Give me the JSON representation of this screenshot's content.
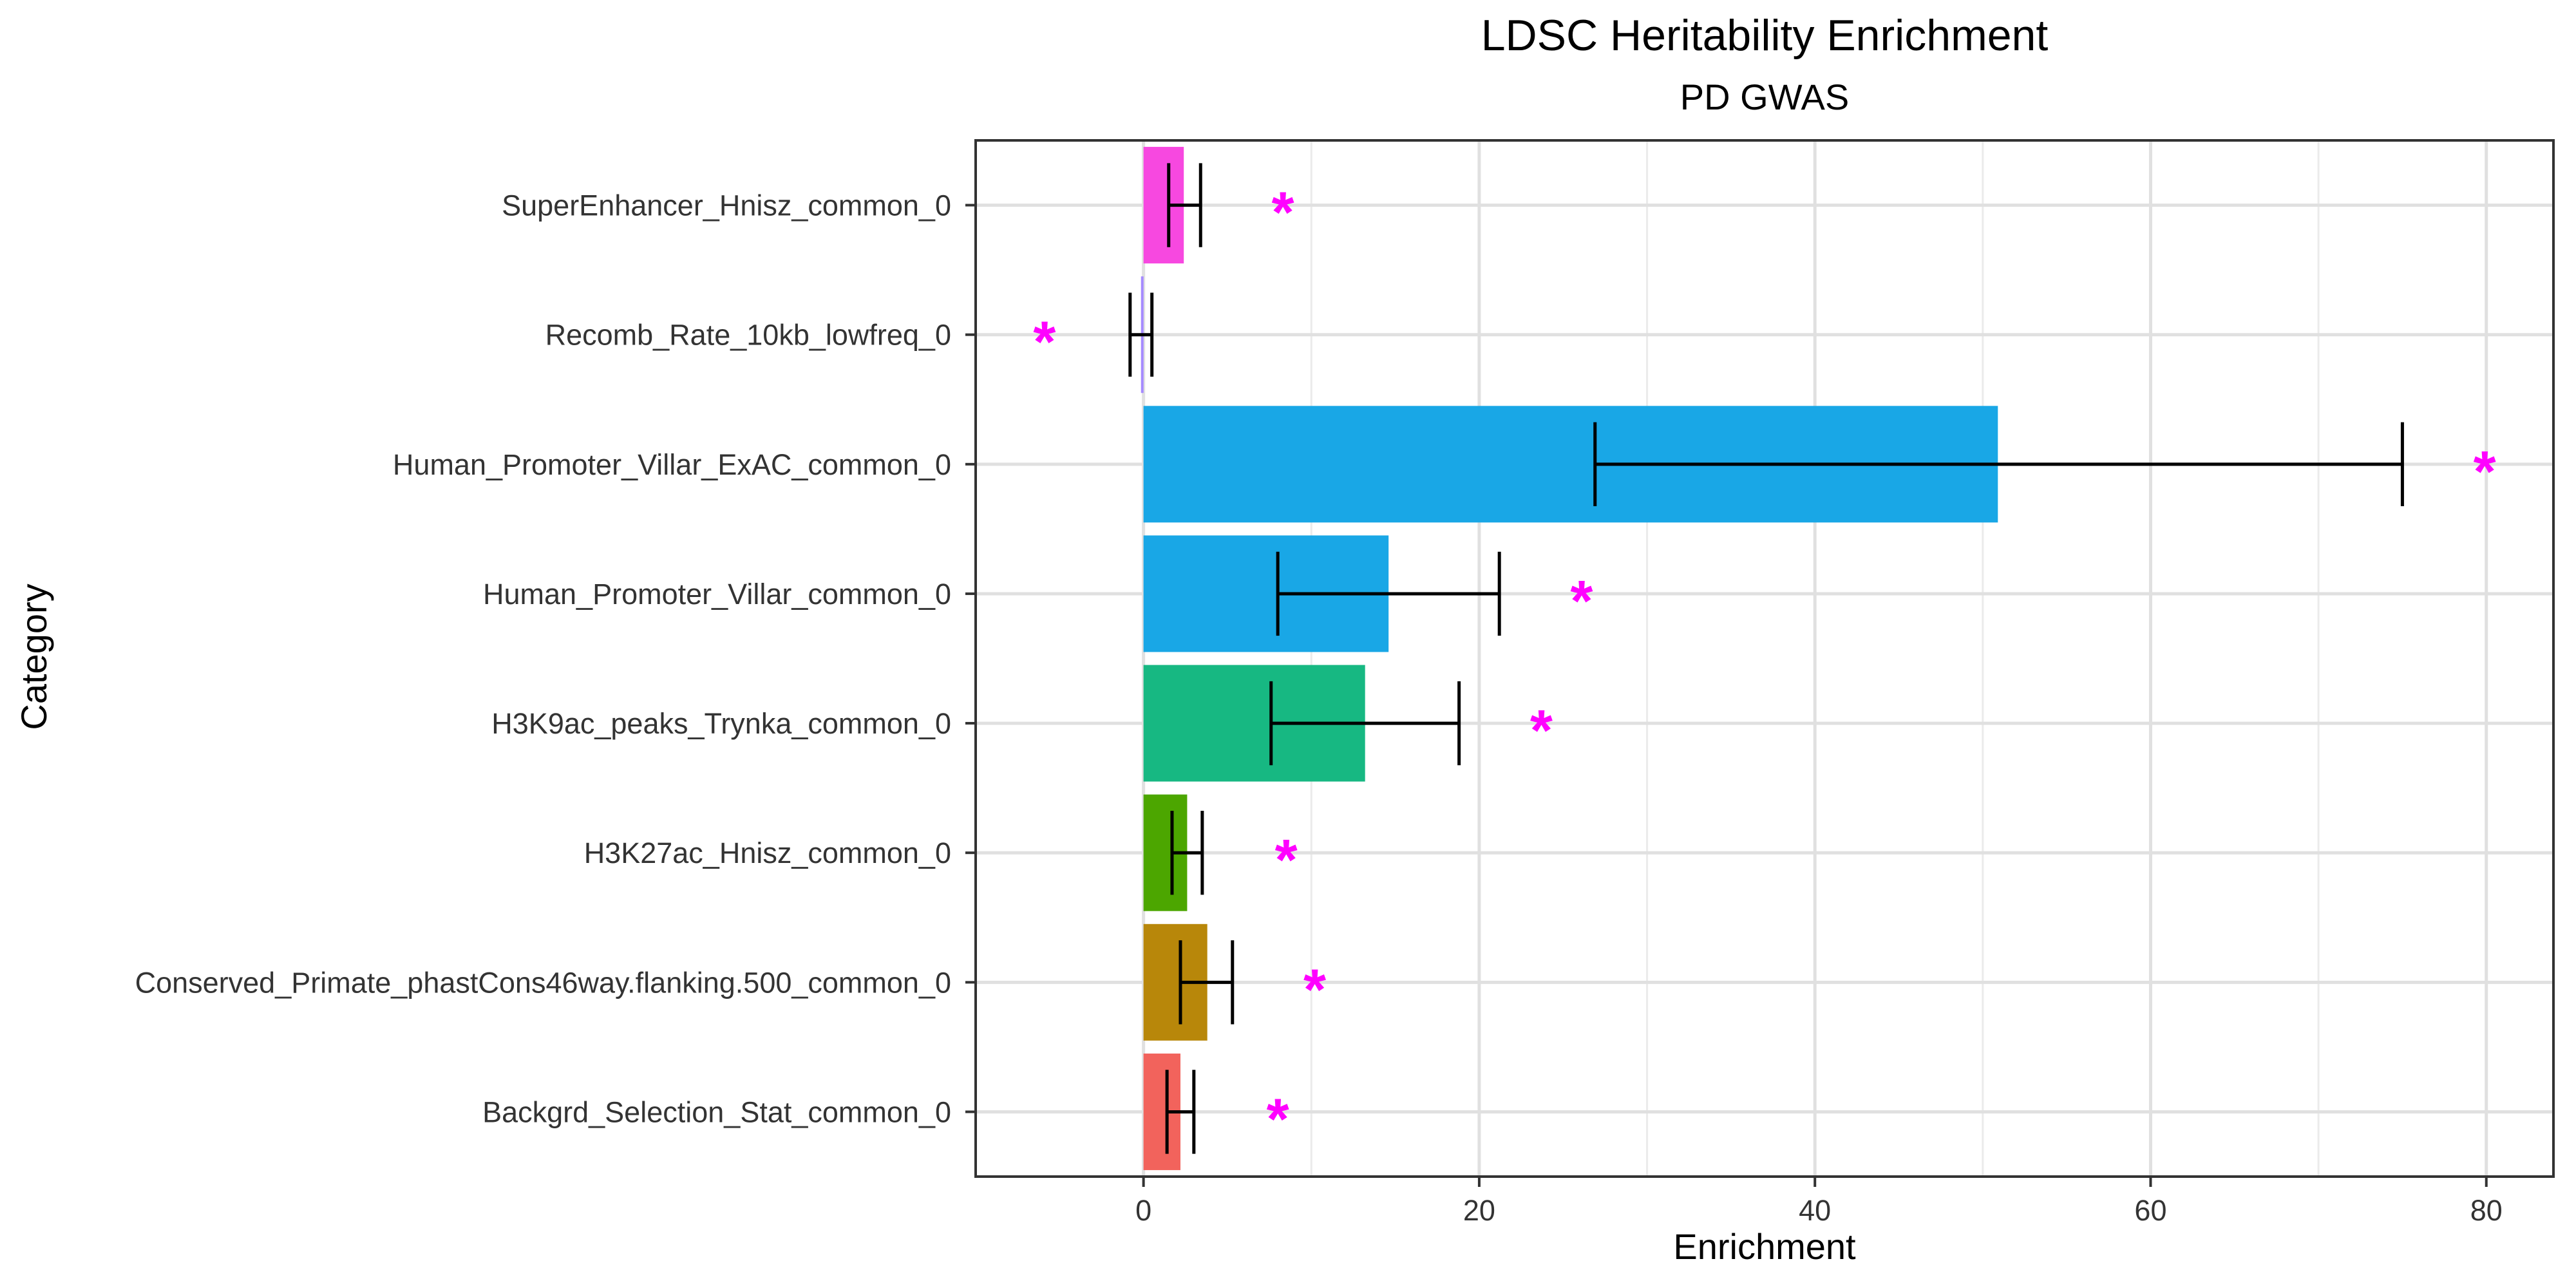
{
  "chart_data": {
    "type": "bar",
    "orientation": "horizontal",
    "title": "LDSC Heritability Enrichment",
    "subtitle": "PD GWAS",
    "xlabel": "Enrichment",
    "ylabel": "Category",
    "xlim": [
      -10,
      84
    ],
    "xticks": [
      0,
      20,
      40,
      60,
      80
    ],
    "grid": true,
    "legend": "none",
    "significance_marker": "*",
    "significance_color": "#FF00FF",
    "categories": [
      {
        "label": "SuperEnhancer_Hnisz_common_0",
        "value": 2.4,
        "err_low": 1.5,
        "err_high": 3.4,
        "star_x": 8.3,
        "color": "#F748E0"
      },
      {
        "label": "Recomb_Rate_10kb_lowfreq_0",
        "value": -0.15,
        "err_low": -0.8,
        "err_high": 0.5,
        "star_x": -5.9,
        "color": "#A58AFF"
      },
      {
        "label": "Human_Promoter_Villar_ExAC_common_0",
        "value": 50.9,
        "err_low": 26.9,
        "err_high": 75.0,
        "star_x": 79.9,
        "color": "#19A7E6"
      },
      {
        "label": "Human_Promoter_Villar_common_0",
        "value": 14.6,
        "err_low": 8.0,
        "err_high": 21.2,
        "star_x": 26.1,
        "color": "#19A7E6"
      },
      {
        "label": "H3K9ac_peaks_Trynka_common_0",
        "value": 13.2,
        "err_low": 7.6,
        "err_high": 18.8,
        "star_x": 23.7,
        "color": "#17B882"
      },
      {
        "label": "H3K27ac_Hnisz_common_0",
        "value": 2.6,
        "err_low": 1.7,
        "err_high": 3.5,
        "star_x": 8.5,
        "color": "#4CA600"
      },
      {
        "label": "Conserved_Primate_phastCons46way.flanking.500_common_0",
        "value": 3.8,
        "err_low": 2.2,
        "err_high": 5.3,
        "star_x": 10.2,
        "color": "#B8870A"
      },
      {
        "label": "Backgrd_Selection_Stat_common_0",
        "value": 2.2,
        "err_low": 1.4,
        "err_high": 3.0,
        "star_x": 8.0,
        "color": "#F2635C"
      }
    ]
  }
}
